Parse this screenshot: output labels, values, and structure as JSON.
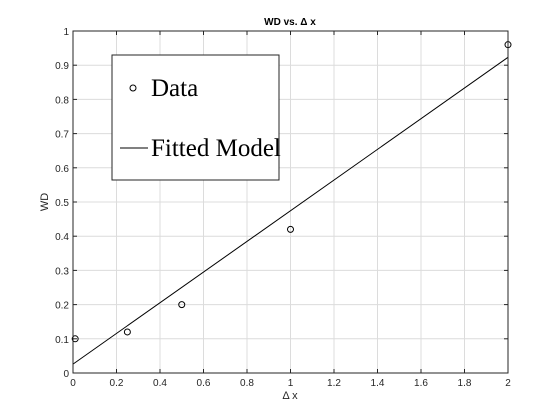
{
  "chart_data": {
    "type": "scatter",
    "title": "WD vs. Δ x",
    "xlabel": "Δ x",
    "ylabel": "WD",
    "xlim": [
      0,
      2
    ],
    "ylim": [
      0,
      1
    ],
    "xticks": [
      0,
      0.2,
      0.4,
      0.6,
      0.8,
      1,
      1.2,
      1.4,
      1.6,
      1.8,
      2
    ],
    "xtick_labels": [
      "0",
      "0.2",
      "0.4",
      "0.6",
      "0.8",
      "1",
      "1.2",
      "1.4",
      "1.6",
      "1.8",
      "2"
    ],
    "yticks": [
      0,
      0.1,
      0.2,
      0.3,
      0.4,
      0.5,
      0.6,
      0.7,
      0.8,
      0.9,
      1
    ],
    "ytick_labels": [
      "0",
      "0.1",
      "0.2",
      "0.3",
      "0.4",
      "0.5",
      "0.6",
      "0.7",
      "0.8",
      "0.9",
      "1"
    ],
    "grid": true,
    "legend_position": "top-left",
    "series": [
      {
        "name": "Data",
        "kind": "markers",
        "marker": "circle",
        "x": [
          0.01,
          0.25,
          0.5,
          1.0,
          2.0
        ],
        "y": [
          0.1,
          0.12,
          0.2,
          0.42,
          0.96
        ]
      },
      {
        "name": "Fitted Model",
        "kind": "line",
        "x": [
          0,
          2
        ],
        "y": [
          0.026,
          0.923
        ]
      }
    ],
    "colors": {
      "axes": "#262626",
      "grid": "#dcdcdc",
      "series": "#000000"
    }
  }
}
